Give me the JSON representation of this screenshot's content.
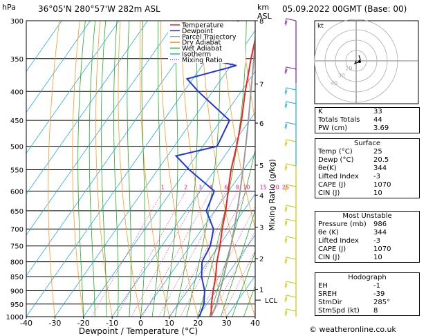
{
  "header": {
    "location": "36°05'N 280°57'W 282m ASL",
    "date": "05.09.2022 00GMT (Base: 00)",
    "hpa_label": "hPa",
    "km_label": "km",
    "asl_label": "ASL"
  },
  "credit": "© weatheronline.co.uk",
  "chart_data": {
    "type": "skew-t",
    "xlabel": "Dewpoint / Temperature (°C)",
    "ylabel_right": "Mixing Ratio (g/kg)",
    "x_ticks": [
      -40,
      -30,
      -20,
      -10,
      0,
      10,
      20,
      30,
      40
    ],
    "pressure_levels": [
      300,
      350,
      400,
      450,
      500,
      550,
      600,
      650,
      700,
      750,
      800,
      850,
      900,
      950,
      1000
    ],
    "xlim": [
      -40,
      40
    ],
    "ylim": [
      1000,
      300
    ],
    "km_ticks": [
      {
        "label": "8",
        "p": 300
      },
      {
        "label": "7",
        "p": 388
      },
      {
        "label": "6",
        "p": 455
      },
      {
        "label": "5",
        "p": 540
      },
      {
        "label": "4",
        "p": 610
      },
      {
        "label": "3",
        "p": 695
      },
      {
        "label": "2",
        "p": 790
      },
      {
        "label": "1",
        "p": 895
      }
    ],
    "lcl_label": "LCL",
    "lcl_pressure": 935,
    "mixing_ratio_labels": [
      "1",
      "2",
      "3",
      "4",
      "6",
      "8",
      "10",
      "15",
      "20",
      "25"
    ],
    "mixing_ratio_values": [
      1,
      2,
      3,
      4,
      6,
      8,
      10,
      15,
      20,
      25
    ],
    "legend": [
      "Temperature",
      "Dewpoint",
      "Parcel Trajectory",
      "Dry Adiabat",
      "Wet Adiabat",
      "Isotherm",
      "Mixing Ratio"
    ],
    "colors": {
      "temperature": "#ee2222",
      "dewpoint": "#2233dd",
      "parcel": "#999999",
      "dry_adiabat": "#ff9922",
      "wet_adiabat": "#22aa22",
      "isotherm": "#22aaee",
      "mixing_ratio": "#ee1199"
    },
    "series": [
      {
        "name": "Temperature",
        "points": [
          [
            1000,
            24.6
          ],
          [
            950,
            21.6
          ],
          [
            900,
            19.0
          ],
          [
            850,
            16.4
          ],
          [
            800,
            13.2
          ],
          [
            750,
            10.4
          ],
          [
            700,
            7.0
          ],
          [
            650,
            3.8
          ],
          [
            600,
            -0.2
          ],
          [
            550,
            -4.4
          ],
          [
            500,
            -8.2
          ],
          [
            450,
            -12.8
          ],
          [
            400,
            -18.6
          ],
          [
            350,
            -24.6
          ],
          [
            300,
            -31.0
          ]
        ]
      },
      {
        "name": "Dewpoint",
        "points": [
          [
            1000,
            20.5
          ],
          [
            950,
            19.0
          ],
          [
            900,
            16.0
          ],
          [
            850,
            11.5
          ],
          [
            800,
            8.0
          ],
          [
            750,
            7.0
          ],
          [
            700,
            4.0
          ],
          [
            650,
            -3.0
          ],
          [
            600,
            -5.0
          ],
          [
            550,
            -19.0
          ],
          [
            520,
            -27.0
          ],
          [
            500,
            -15.0
          ],
          [
            450,
            -17.0
          ],
          [
            400,
            -35.0
          ],
          [
            380,
            -42.0
          ],
          [
            360,
            -28.0
          ],
          [
            345,
            -47.0
          ],
          [
            325,
            -41.0
          ],
          [
            318,
            -52.0
          ],
          [
            305,
            -40.0
          ],
          [
            300,
            -38.0
          ]
        ]
      },
      {
        "name": "Parcel Trajectory",
        "points": [
          [
            1000,
            24.6
          ],
          [
            950,
            23.4
          ],
          [
            900,
            21.4
          ],
          [
            850,
            19.2
          ],
          [
            800,
            16.8
          ],
          [
            750,
            14.2
          ],
          [
            700,
            11.2
          ],
          [
            650,
            7.8
          ],
          [
            600,
            4.0
          ],
          [
            550,
            -0.2
          ],
          [
            500,
            -5.0
          ],
          [
            450,
            -10.4
          ],
          [
            400,
            -16.6
          ],
          [
            350,
            -23.6
          ],
          [
            300,
            -32.0
          ]
        ]
      }
    ]
  },
  "hodograph": {
    "label": "kt",
    "ring_labels": [
      "40",
      "30",
      "20"
    ]
  },
  "stats": {
    "basic": [
      {
        "k": "K",
        "v": "33"
      },
      {
        "k": "Totals Totals",
        "v": "44"
      },
      {
        "k": "PW (cm)",
        "v": "3.69"
      }
    ],
    "surface": {
      "title": "Surface",
      "rows": [
        {
          "k": "Temp (°C)",
          "v": "25"
        },
        {
          "k": "Dewp (°C)",
          "v": "20.5"
        },
        {
          "k": "θe(K)",
          "v": "344"
        },
        {
          "k": "Lifted Index",
          "v": "-3"
        },
        {
          "k": "CAPE (J)",
          "v": "1070"
        },
        {
          "k": "CIN (J)",
          "v": "10"
        }
      ]
    },
    "most_unstable": {
      "title": "Most Unstable",
      "rows": [
        {
          "k": "Pressure (mb)",
          "v": "986"
        },
        {
          "k": "θe (K)",
          "v": "344"
        },
        {
          "k": "Lifted Index",
          "v": "-3"
        },
        {
          "k": "CAPE (J)",
          "v": "1070"
        },
        {
          "k": "CIN (J)",
          "v": "10"
        }
      ]
    },
    "hodograph": {
      "title": "Hodograph",
      "rows": [
        {
          "k": "EH",
          "v": "-1"
        },
        {
          "k": "SREH",
          "v": "-39"
        },
        {
          "k": "StmDir",
          "v": "285°"
        },
        {
          "k": "StmSpd (kt)",
          "v": "8"
        }
      ]
    }
  }
}
